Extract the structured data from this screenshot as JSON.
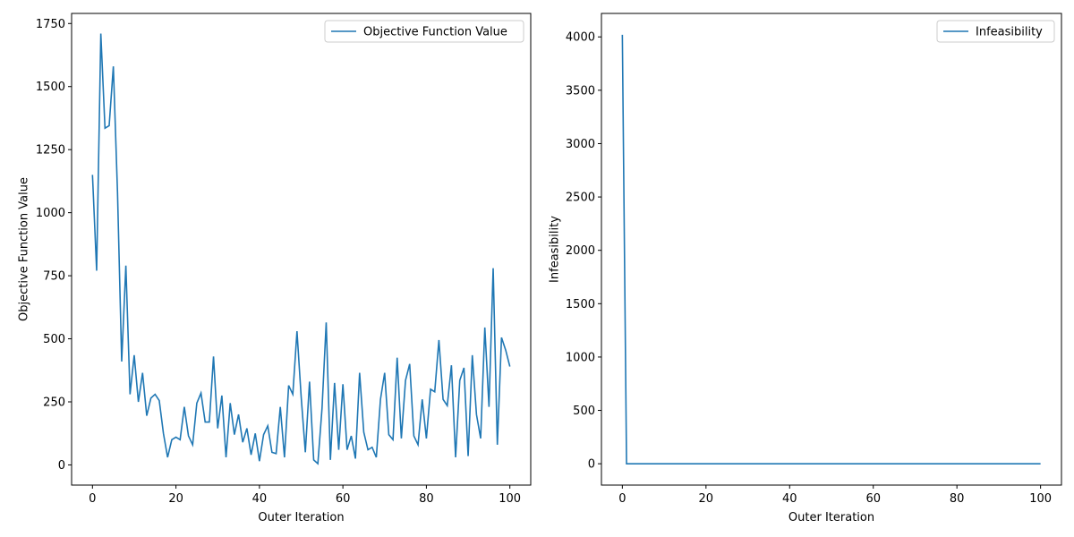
{
  "colors": {
    "series": "#1f77b4",
    "axis": "#000000",
    "legend_border": "#cccccc",
    "background": "#ffffff"
  },
  "chart_data": [
    {
      "type": "line",
      "title": "",
      "xlabel": "Outer Iteration",
      "ylabel": "Objective Function Value",
      "xlim": [
        -5,
        105
      ],
      "ylim": [
        -80,
        1790
      ],
      "xticks": [
        0,
        20,
        40,
        60,
        80,
        100
      ],
      "yticks": [
        0,
        250,
        500,
        750,
        1000,
        1250,
        1500,
        1750
      ],
      "grid": false,
      "legend_position": "top-right",
      "series": [
        {
          "name": "Objective Function Value",
          "color": "#1f77b4",
          "x": [
            0,
            1,
            2,
            3,
            4,
            5,
            6,
            7,
            8,
            9,
            10,
            11,
            12,
            13,
            14,
            15,
            16,
            17,
            18,
            19,
            20,
            21,
            22,
            23,
            24,
            25,
            26,
            27,
            28,
            29,
            30,
            31,
            32,
            33,
            34,
            35,
            36,
            37,
            38,
            39,
            40,
            41,
            42,
            43,
            44,
            45,
            46,
            47,
            48,
            49,
            50,
            51,
            52,
            53,
            54,
            55,
            56,
            57,
            58,
            59,
            60,
            61,
            62,
            63,
            64,
            65,
            66,
            67,
            68,
            69,
            70,
            71,
            72,
            73,
            74,
            75,
            76,
            77,
            78,
            79,
            80,
            81,
            82,
            83,
            84,
            85,
            86,
            87,
            88,
            89,
            90,
            91,
            92,
            93,
            94,
            95,
            96,
            97,
            98,
            99,
            100
          ],
          "y": [
            1150,
            770,
            1710,
            1335,
            1345,
            1580,
            1080,
            410,
            790,
            280,
            435,
            250,
            365,
            195,
            265,
            280,
            255,
            125,
            30,
            100,
            110,
            100,
            230,
            115,
            80,
            245,
            285,
            170,
            170,
            430,
            145,
            275,
            30,
            245,
            120,
            200,
            90,
            145,
            40,
            125,
            15,
            120,
            155,
            50,
            45,
            230,
            30,
            315,
            280,
            530,
            270,
            50,
            330,
            20,
            5,
            225,
            565,
            20,
            325,
            60,
            320,
            60,
            115,
            25,
            365,
            130,
            60,
            70,
            30,
            260,
            365,
            120,
            100,
            425,
            105,
            335,
            400,
            115,
            80,
            260,
            105,
            300,
            290,
            495,
            260,
            235,
            395,
            30,
            335,
            385,
            35,
            435,
            200,
            105,
            545,
            230,
            780,
            80,
            505,
            455,
            390
          ]
        }
      ]
    },
    {
      "type": "line",
      "title": "",
      "xlabel": "Outer Iteration",
      "ylabel": "Infeasibility",
      "xlim": [
        -5,
        105
      ],
      "ylim": [
        -200,
        4220
      ],
      "xticks": [
        0,
        20,
        40,
        60,
        80,
        100
      ],
      "yticks": [
        0,
        500,
        1000,
        1500,
        2000,
        2500,
        3000,
        3500,
        4000
      ],
      "grid": false,
      "legend_position": "top-right",
      "series": [
        {
          "name": "Infeasibility",
          "color": "#1f77b4",
          "x": [
            0,
            1,
            100
          ],
          "y": [
            4020,
            0,
            0
          ]
        }
      ]
    }
  ]
}
